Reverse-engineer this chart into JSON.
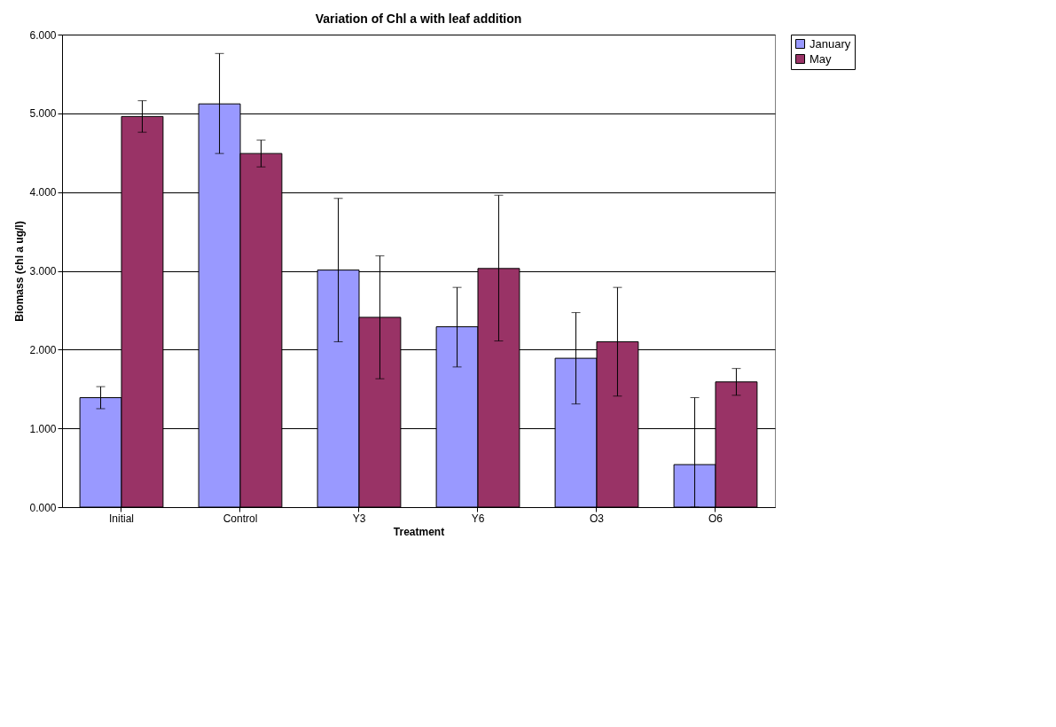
{
  "chart_data": {
    "type": "bar",
    "title": "Variation of Chl a with leaf addition",
    "xlabel": "Treatment",
    "ylabel": "Biomass (chl a ug/l)",
    "categories": [
      "Initial",
      "Control",
      "Y3",
      "Y6",
      "O3",
      "O6"
    ],
    "series": [
      {
        "name": "January",
        "color": "#9999ff",
        "values": [
          1.39,
          5.12,
          3.01,
          2.29,
          1.89,
          0.54
        ],
        "errors": [
          [
            1.25,
            1.53
          ],
          [
            4.49,
            5.76
          ],
          [
            2.1,
            3.92
          ],
          [
            1.78,
            2.79
          ],
          [
            1.31,
            2.47
          ],
          [
            0.0,
            1.39
          ]
        ]
      },
      {
        "name": "May",
        "color": "#993366",
        "values": [
          4.96,
          4.49,
          2.41,
          3.03,
          2.1,
          1.59
        ],
        "errors": [
          [
            4.76,
            5.16
          ],
          [
            4.32,
            4.66
          ],
          [
            1.63,
            3.19
          ],
          [
            2.11,
            3.96
          ],
          [
            1.41,
            2.79
          ],
          [
            1.42,
            1.76
          ]
        ]
      }
    ],
    "ylim": [
      0,
      6
    ],
    "yticks": [
      {
        "value": 0,
        "label": "0.000"
      },
      {
        "value": 1,
        "label": "1.000"
      },
      {
        "value": 2,
        "label": "2.000"
      },
      {
        "value": 3,
        "label": "3.000"
      },
      {
        "value": 4,
        "label": "4.000"
      },
      {
        "value": 5,
        "label": "5.000"
      },
      {
        "value": 6,
        "label": "6.000"
      }
    ],
    "grid": "y",
    "legend": "right"
  }
}
